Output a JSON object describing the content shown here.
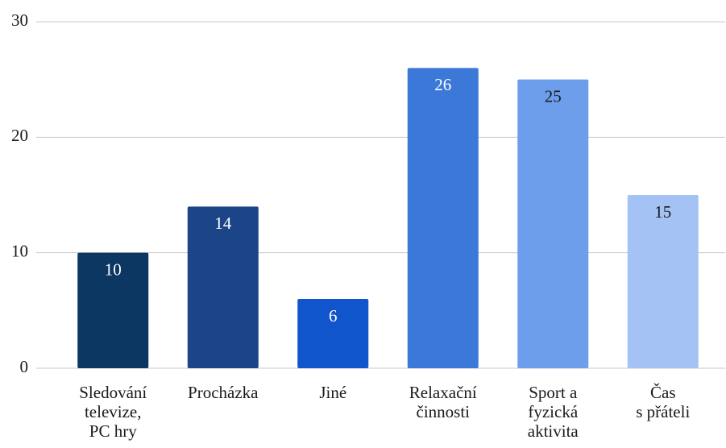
{
  "chart_data": {
    "type": "bar",
    "categories": [
      "Sledování\ntelevize,\nPC hry",
      "Procházka",
      "Jiné",
      "Relaxační\nčinnosti",
      "Sport a\nfyzická\naktivita",
      "Čas\ns přáteli"
    ],
    "values": [
      10,
      14,
      6,
      26,
      25,
      15
    ],
    "colors": [
      "#0b3762",
      "#1c4587",
      "#1155cc",
      "#3c78d8",
      "#6d9eeb",
      "#a4c2f4"
    ],
    "label_colors": [
      "#ffffff",
      "#ffffff",
      "#ffffff",
      "#ffffff",
      "#1a1a1a",
      "#1a1a1a"
    ],
    "ylim": [
      0,
      30
    ],
    "yticks": [
      0,
      10,
      20,
      30
    ],
    "grid": true
  }
}
